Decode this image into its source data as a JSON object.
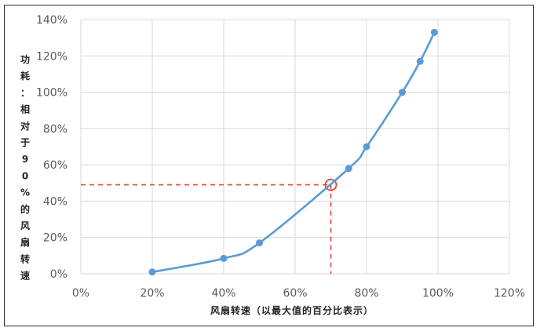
{
  "chart_data": {
    "type": "line",
    "title": "",
    "xlabel": "风扇转速（以最大值的百分比表示）",
    "ylabel": "功耗：相对于90%的风扇转速",
    "xlim": [
      0,
      120
    ],
    "ylim": [
      0,
      140
    ],
    "x_ticks": [
      "0%",
      "20%",
      "40%",
      "60%",
      "80%",
      "100%",
      "120%"
    ],
    "y_ticks": [
      "0%",
      "20%",
      "40%",
      "60%",
      "80%",
      "100%",
      "120%",
      "140%"
    ],
    "grid": true,
    "legend": "none",
    "series": [
      {
        "x": [
          20,
          40,
          50,
          75,
          80,
          90,
          95,
          99
        ],
        "y": [
          1,
          8.5,
          17,
          58,
          70,
          100,
          117,
          133
        ]
      }
    ],
    "annotation": {
      "x": 70,
      "y": 49,
      "style": "red dashed guide lines with circle marker"
    },
    "colors": {
      "series": "#5b9bd5",
      "annotation": "#e8413c",
      "grid": "#d9d9d9"
    }
  }
}
